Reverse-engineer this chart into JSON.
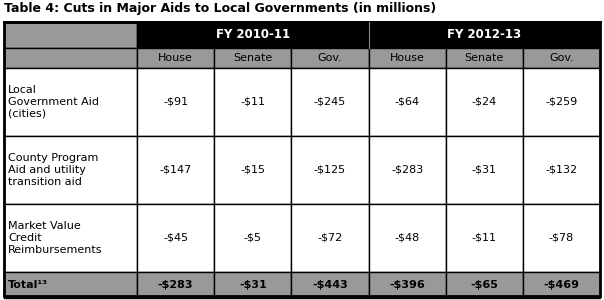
{
  "title": "Table 4: Cuts in Major Aids to Local Governments (in millions)",
  "fy1_label": "FY 2010-11",
  "fy2_label": "FY 2012-13",
  "sub_headers": [
    "House",
    "Senate",
    "Gov.",
    "House",
    "Senate",
    "Gov."
  ],
  "row_labels": [
    "Local\nGovernment Aid\n(cities)",
    "County Program\nAid and utility\ntransition aid",
    "Market Value\nCredit\nReimbursements",
    "Total¹³"
  ],
  "data": [
    [
      "-$91",
      "-$11",
      "-$245",
      "-$64",
      "-$24",
      "-$259"
    ],
    [
      "-$147",
      "-$15",
      "-$125",
      "-$283",
      "-$31",
      "-$132"
    ],
    [
      "-$45",
      "-$5",
      "-$72",
      "-$48",
      "-$11",
      "-$78"
    ],
    [
      "-$283",
      "-$31",
      "-$443",
      "-$396",
      "-$65",
      "-$469"
    ]
  ],
  "row_is_total": [
    false,
    false,
    false,
    true
  ],
  "header_bg": "#000000",
  "subheader_bg": "#999999",
  "total_row_bg": "#999999",
  "data_row_bg": "#ffffff",
  "header_text_color": "#ffffff",
  "subheader_text_color": "#000000",
  "data_text_color": "#000000",
  "border_color": "#000000",
  "title_fontsize": 9.0,
  "header_fontsize": 8.5,
  "data_fontsize": 8.0
}
